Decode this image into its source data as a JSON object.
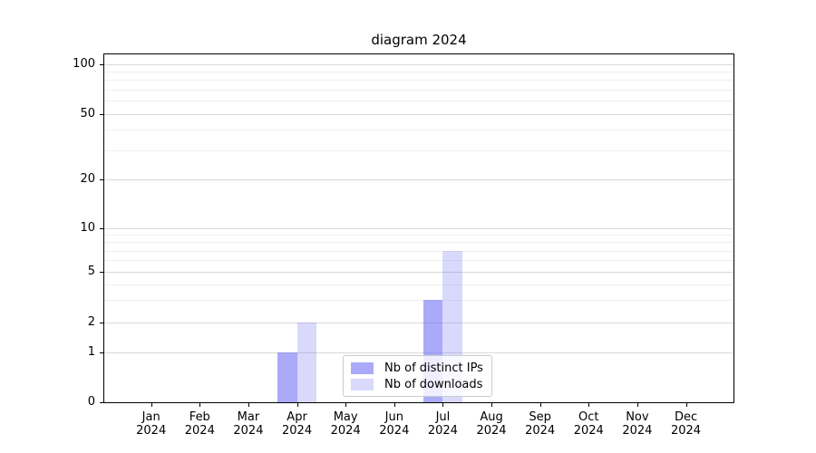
{
  "title": "diagram 2024",
  "x_axis": {
    "months": [
      "Jan",
      "Feb",
      "Mar",
      "Apr",
      "May",
      "Jun",
      "Jul",
      "Aug",
      "Sep",
      "Oct",
      "Nov",
      "Dec"
    ],
    "year": "2024"
  },
  "y_axis": {
    "tick_labels": [
      "0",
      "1",
      "2",
      "5",
      "10",
      "20",
      "50",
      "100"
    ]
  },
  "legend": {
    "items": [
      {
        "label": "Nb of distinct IPs",
        "color": "rgba(110,110,245,0.59)"
      },
      {
        "label": "Nb of downloads",
        "color": "rgba(110,110,245,0.26)"
      }
    ]
  },
  "colors": {
    "bar_base": "#6e6ef5",
    "grid_major": "#d9d9d9",
    "grid_minor": "#efefef",
    "spine": "#000000",
    "legend_border": "#cccccc"
  },
  "chart_data": {
    "type": "bar",
    "title": "diagram 2024",
    "categories": [
      "Jan 2024",
      "Feb 2024",
      "Mar 2024",
      "Apr 2024",
      "May 2024",
      "Jun 2024",
      "Jul 2024",
      "Aug 2024",
      "Sep 2024",
      "Oct 2024",
      "Nov 2024",
      "Dec 2024"
    ],
    "series": [
      {
        "name": "Nb of distinct IPs",
        "color": "rgba(110,110,245,0.59)",
        "values": [
          0,
          0,
          0,
          1,
          0,
          0,
          3,
          0,
          0,
          0,
          0,
          0
        ]
      },
      {
        "name": "Nb of downloads",
        "color": "rgba(110,110,245,0.26)",
        "values": [
          0,
          0,
          0,
          2,
          0,
          0,
          7,
          0,
          0,
          0,
          0,
          0
        ]
      }
    ],
    "xlabel": "",
    "ylabel": "",
    "yticks": [
      0,
      1,
      2,
      5,
      10,
      20,
      50,
      100
    ],
    "minor_gridlines": [
      3,
      4,
      6,
      7,
      8,
      9,
      30,
      40,
      60,
      70,
      80,
      90
    ],
    "yscale": "quasi-log (linear 0-1, log above)",
    "ylim_top_approx": 115,
    "grid": true,
    "legend_position": "lower center"
  }
}
